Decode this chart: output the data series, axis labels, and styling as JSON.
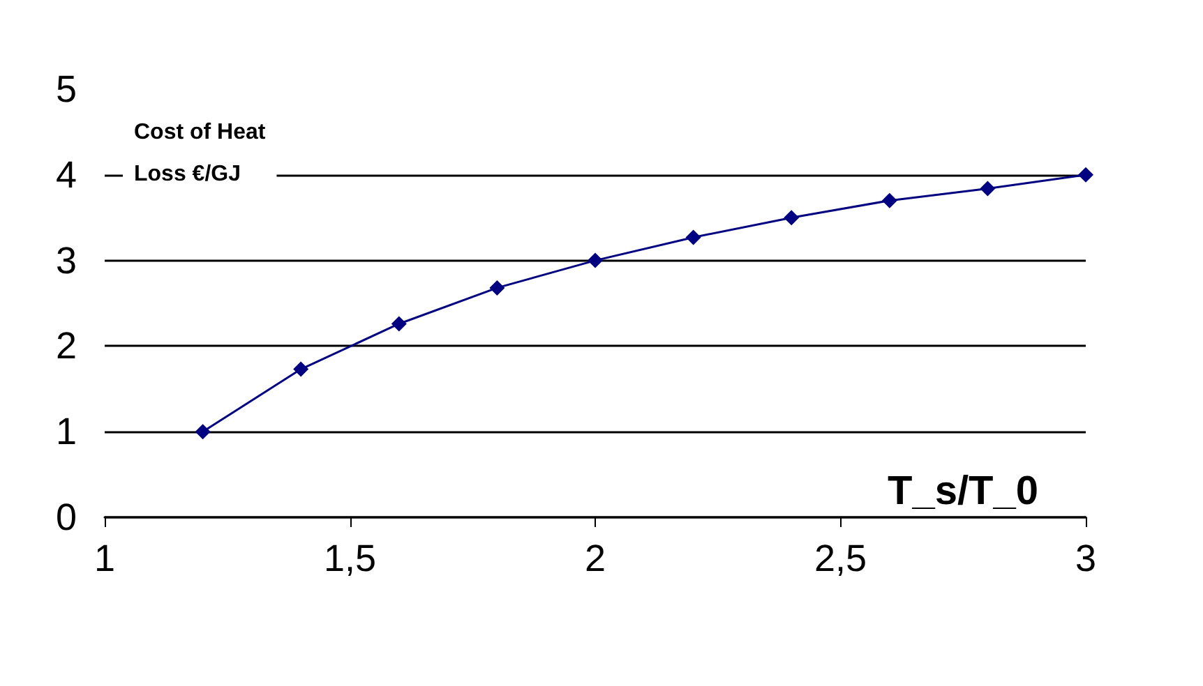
{
  "chart_data": {
    "type": "line",
    "ylabel": "Cost of Heat\nLoss €/GJ",
    "xlabel": "T_s/T_0",
    "x": [
      1.2,
      1.4,
      1.6,
      1.8,
      2.0,
      2.2,
      2.4,
      2.6,
      2.8,
      3.0
    ],
    "series": [
      {
        "color": "#000080",
        "values": [
          1.0,
          1.73,
          2.26,
          2.68,
          3.0,
          3.27,
          3.5,
          3.7,
          3.84,
          4.0
        ]
      }
    ],
    "xlim": [
      1,
      3
    ],
    "xticks": [
      1,
      {
        "value": 1.5,
        "label": "1,5"
      },
      2,
      {
        "value": 2.5,
        "label": "2,5"
      },
      3
    ],
    "ylim": [
      0,
      5
    ],
    "yticks": [
      0,
      1,
      2,
      3,
      4,
      5
    ],
    "grid": "y",
    "marker": "diamond",
    "line_style": "solid"
  }
}
